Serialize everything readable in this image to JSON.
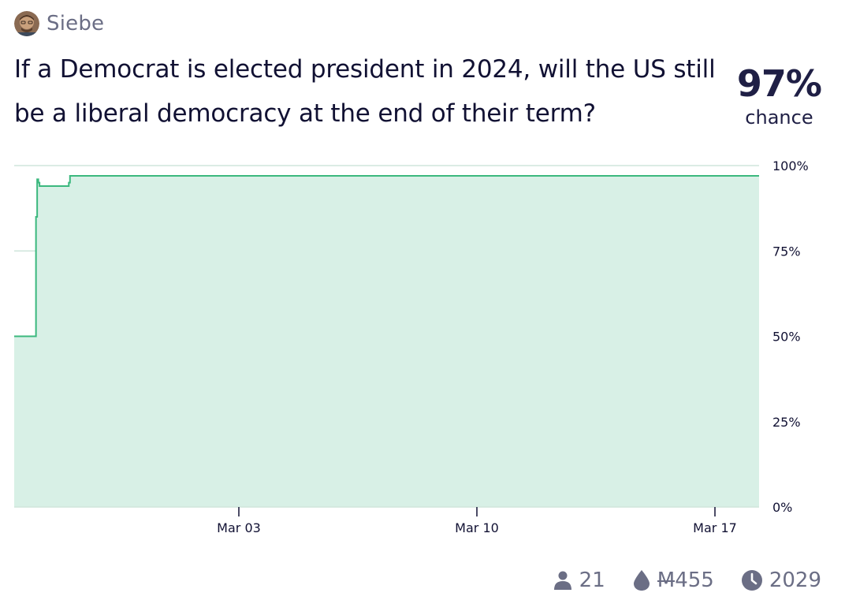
{
  "author": {
    "name": "Siebe",
    "avatar_icon": "user-avatar-photo"
  },
  "question": "If a Democrat is elected president in 2024, will the US still be a liberal democracy at the end of their term?",
  "probability": {
    "value": "97%",
    "label": "chance"
  },
  "stats": {
    "traders": "21",
    "volume_symbol": "M",
    "volume": "455",
    "unique_bettors": "2029",
    "traders_icon": "user-icon",
    "volume_icon": "droplet-icon",
    "time_icon": "clock-icon"
  },
  "colors": {
    "line": "#3bb87e",
    "fill": "#d8f0e6",
    "grid": "#cfe5db",
    "axis": "#111133",
    "muted": "#6b6e85"
  },
  "chart_data": {
    "type": "area",
    "x_tick_labels": [
      "Mar 03",
      "Mar 10",
      "Mar 17"
    ],
    "y_tick_labels": [
      "100%",
      "75%",
      "50%",
      "25%",
      "0%"
    ],
    "ylim": [
      0,
      100
    ],
    "grid": true,
    "series": [
      {
        "points": [
          {
            "x": "Feb 26",
            "y": 50
          },
          {
            "x": "Feb 26",
            "y": 85
          },
          {
            "x": "Feb 26",
            "y": 96
          },
          {
            "x": "Feb 26",
            "y": 95
          },
          {
            "x": "Feb 26",
            "y": 94
          },
          {
            "x": "Feb 27",
            "y": 95
          },
          {
            "x": "Feb 27",
            "y": 97
          },
          {
            "x": "Feb 28",
            "y": 97
          },
          {
            "x": "Mar 18",
            "y": 97
          }
        ]
      }
    ]
  }
}
